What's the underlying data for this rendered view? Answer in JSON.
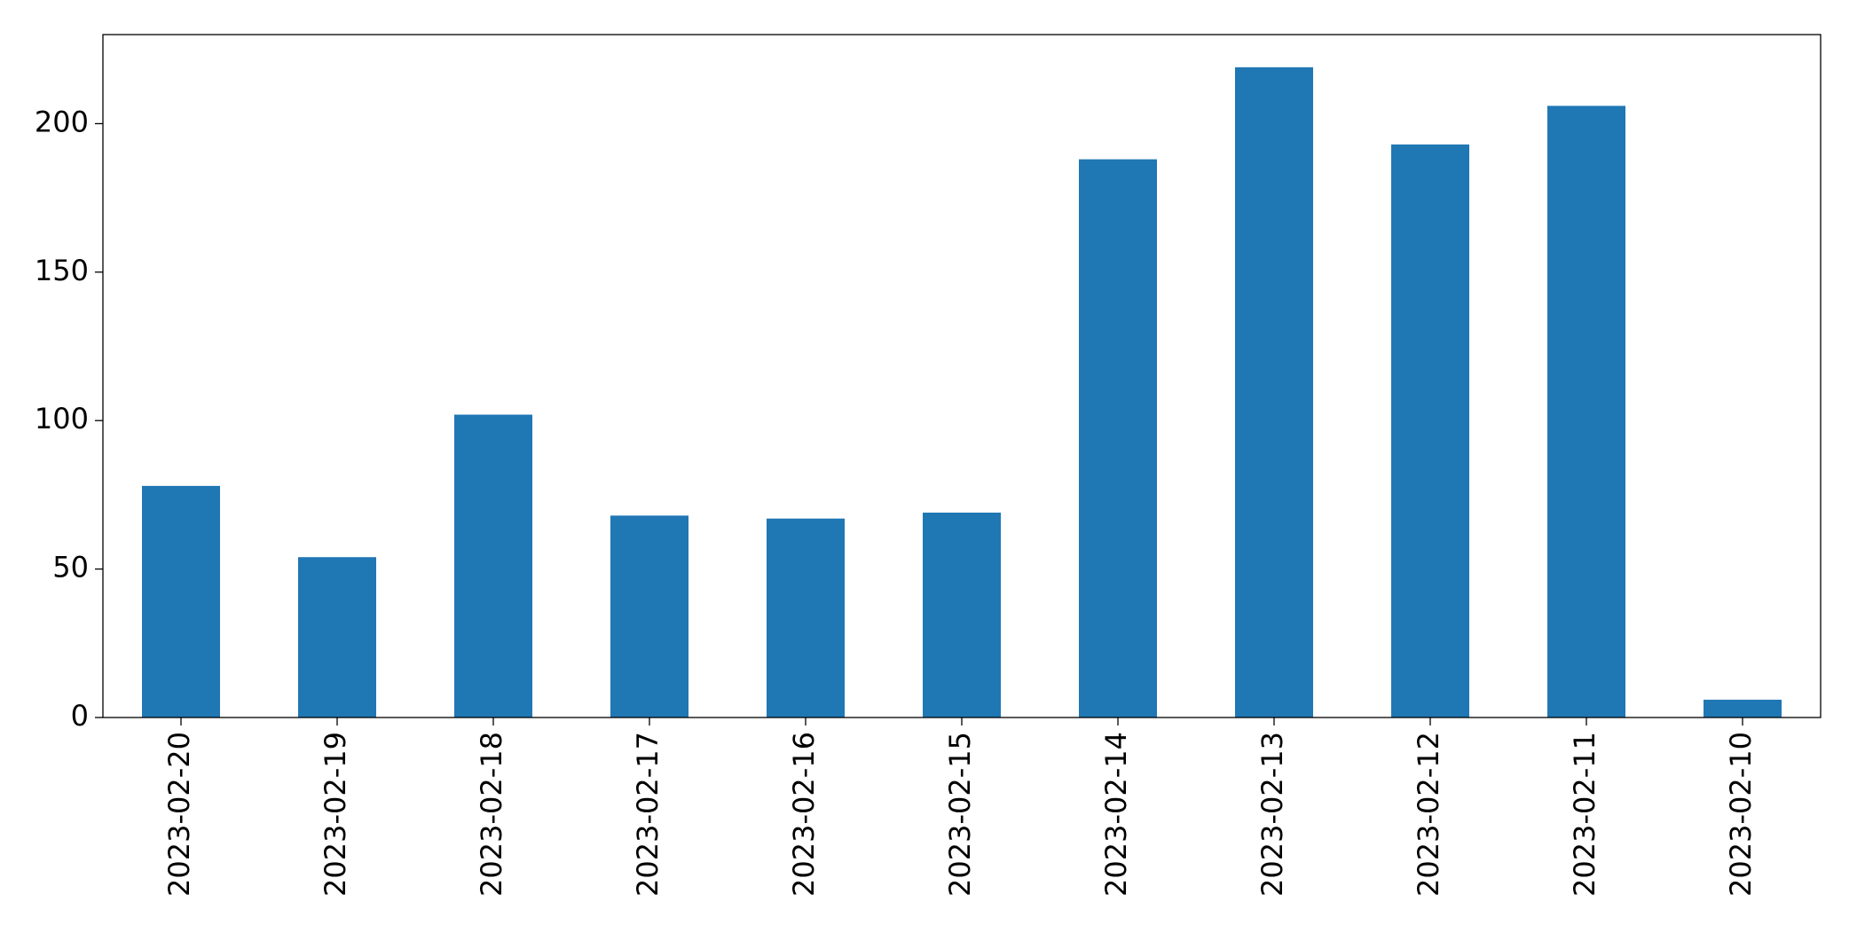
{
  "chart_data": {
    "type": "bar",
    "categories": [
      "2023-02-20",
      "2023-02-19",
      "2023-02-18",
      "2023-02-17",
      "2023-02-16",
      "2023-02-15",
      "2023-02-14",
      "2023-02-13",
      "2023-02-12",
      "2023-02-11",
      "2023-02-10"
    ],
    "values": [
      78,
      54,
      102,
      68,
      67,
      69,
      188,
      219,
      193,
      206,
      6
    ],
    "color": "#1f77b4",
    "ylim": [
      0,
      230
    ],
    "yticks": [
      0,
      50,
      100,
      150,
      200
    ],
    "grid": false
  }
}
